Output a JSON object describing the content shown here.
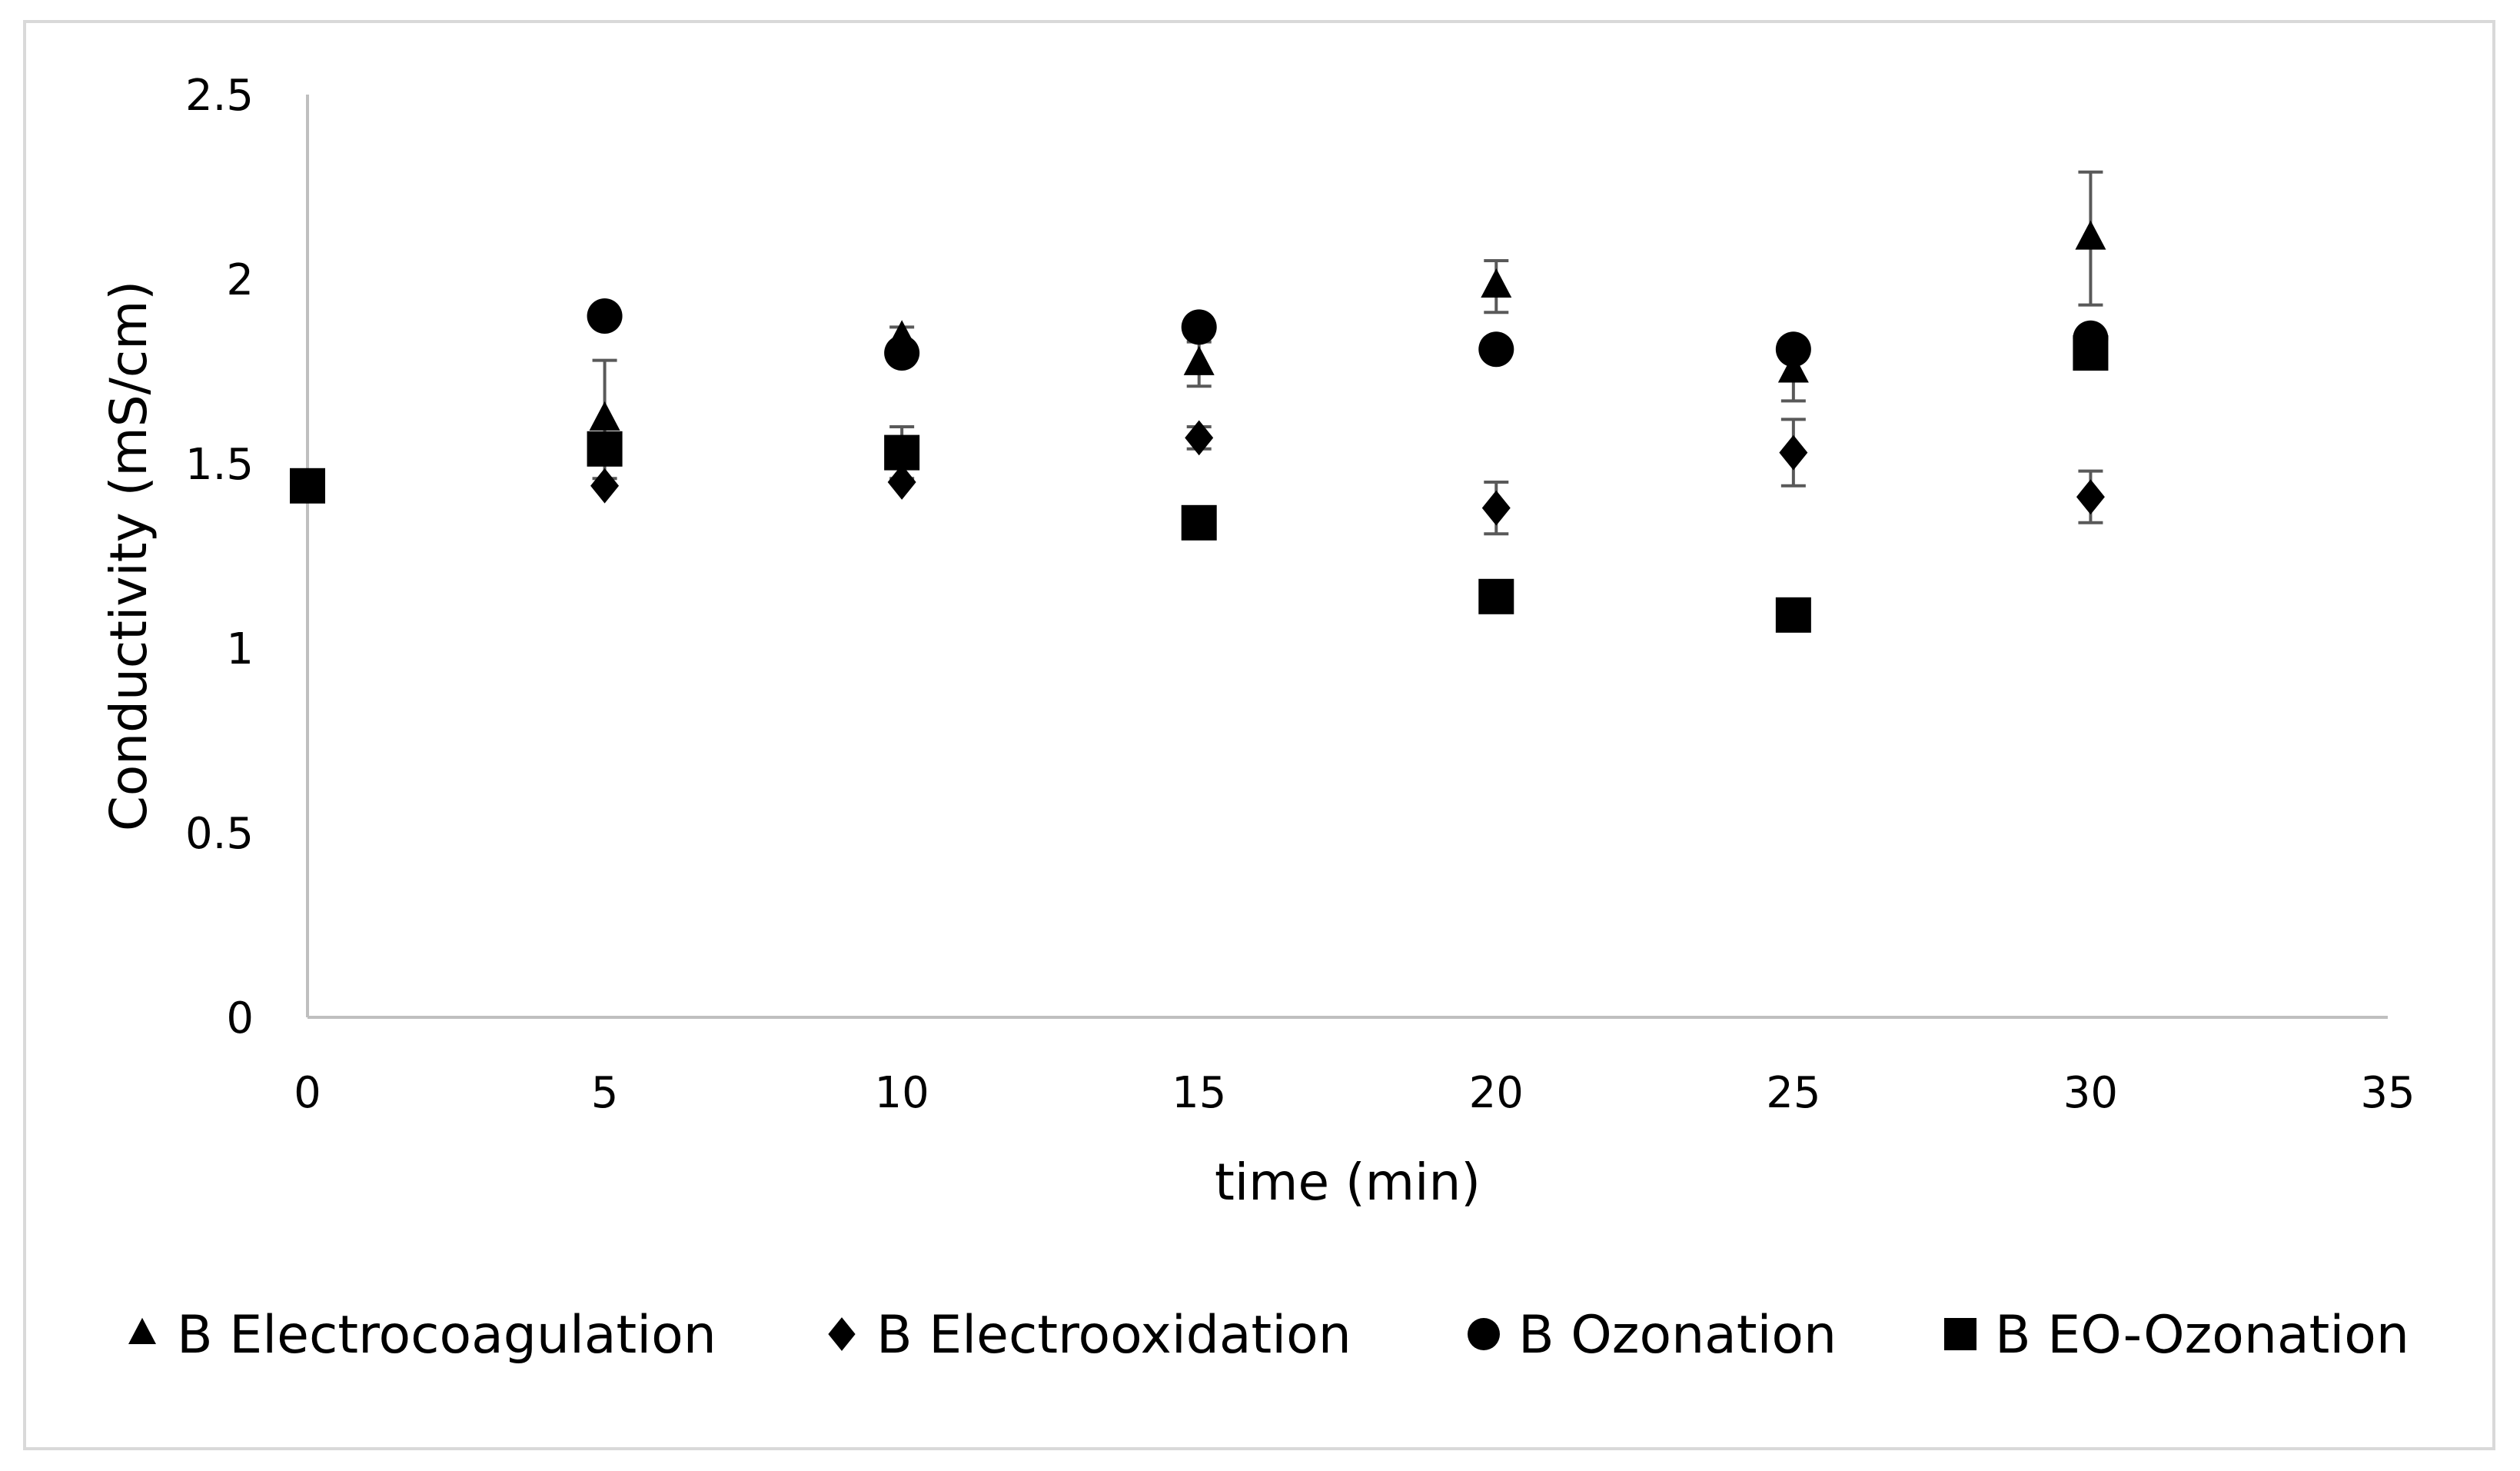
{
  "chart_data": {
    "type": "scatter",
    "title": "",
    "xlabel": "time (min)",
    "ylabel": "Conductivity (mS/cm)",
    "xlim": [
      0,
      35
    ],
    "ylim": [
      0,
      2.5
    ],
    "x_ticks": [
      "0",
      "5",
      "10",
      "15",
      "20",
      "25",
      "30",
      "35"
    ],
    "y_ticks": [
      "0",
      "0.5",
      "1",
      "1.5",
      "2",
      "2.5"
    ],
    "grid": false,
    "legend_position": "bottom",
    "series": [
      {
        "name": "B Electrocoagulation",
        "marker": "triangle",
        "points": [
          {
            "x": 5,
            "y": 1.62,
            "err": 0.16
          },
          {
            "x": 10,
            "y": 1.84,
            "err": 0.03
          },
          {
            "x": 15,
            "y": 1.77,
            "err": 0.06
          },
          {
            "x": 20,
            "y": 1.98,
            "err": 0.07
          },
          {
            "x": 25,
            "y": 1.75,
            "err": 0.08
          },
          {
            "x": 30,
            "y": 2.11,
            "err": 0.18
          }
        ]
      },
      {
        "name": "B Electrooxidation",
        "marker": "diamond",
        "points": [
          {
            "x": 5,
            "y": 1.44,
            "err": 0.0
          },
          {
            "x": 10,
            "y": 1.45,
            "err": 0.0
          },
          {
            "x": 15,
            "y": 1.57,
            "err": 0.03
          },
          {
            "x": 20,
            "y": 1.38,
            "err": 0.07
          },
          {
            "x": 25,
            "y": 1.53,
            "err": 0.09
          },
          {
            "x": 30,
            "y": 1.41,
            "err": 0.07
          }
        ]
      },
      {
        "name": "B Ozonation",
        "marker": "circle",
        "points": [
          {
            "x": 5,
            "y": 1.9,
            "err": 0.0
          },
          {
            "x": 10,
            "y": 1.8,
            "err": 0.0
          },
          {
            "x": 15,
            "y": 1.87,
            "err": 0.0
          },
          {
            "x": 20,
            "y": 1.81,
            "err": 0.0
          },
          {
            "x": 25,
            "y": 1.81,
            "err": 0.0
          },
          {
            "x": 30,
            "y": 1.84,
            "err": 0.0
          }
        ]
      },
      {
        "name": "B EO-Ozonation",
        "marker": "square",
        "points": [
          {
            "x": 0,
            "y": 1.44,
            "err": 0.0
          },
          {
            "x": 5,
            "y": 1.54,
            "err": 0.02
          },
          {
            "x": 10,
            "y": 1.53,
            "err": 0.07
          },
          {
            "x": 15,
            "y": 1.34,
            "err": 0.0
          },
          {
            "x": 20,
            "y": 1.14,
            "err": 0.04
          },
          {
            "x": 25,
            "y": 1.09,
            "err": 0.0
          },
          {
            "x": 30,
            "y": 1.8,
            "err": 0.0
          }
        ]
      }
    ]
  },
  "colors": {
    "marker": "#000000",
    "error_bar": "#595959",
    "axis": "#bfbfbf",
    "frame": "#d9d9d9"
  }
}
